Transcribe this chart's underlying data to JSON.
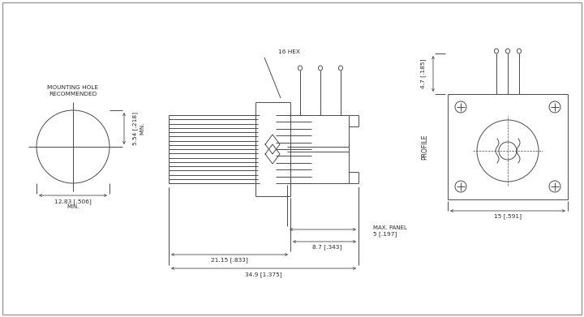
{
  "bg_color": "#ffffff",
  "line_color": "#4a4a4a",
  "text_color": "#2a2a2a",
  "figsize": [
    7.2,
    3.91
  ],
  "dpi": 100,
  "annotations": {
    "dim_34_9": "34.9 [1.375]",
    "dim_21_15": "21.15 [.833]",
    "dim_8_7": "8.7 [.343]",
    "dim_5": "5 [.197]",
    "dim_max_panel": "MAX. PANEL",
    "dim_16hex": "16 HEX",
    "dim_12_83": "12.83 [.506]",
    "dim_min1": "MIN.",
    "dim_5_54": "5.54 [.218]",
    "dim_min2": "MIN.",
    "rec_mount": "RECOMMENDED\nMOUNTING HOLE",
    "dim_15": "15 [.591]",
    "profile": "PROFILE",
    "dim_4_7": "4.7 [.185]"
  }
}
